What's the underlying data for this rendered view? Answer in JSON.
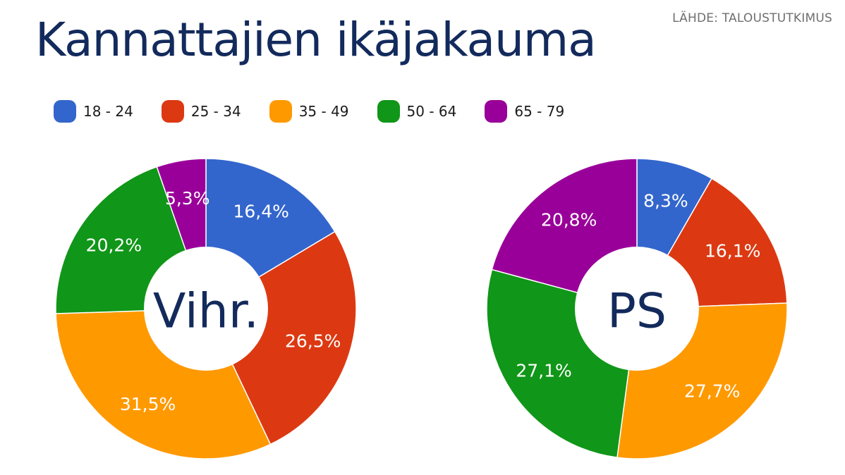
{
  "header": {
    "title": "Kannattajien ikäjakauma",
    "source": "LÄHDE: TALOUSTUTKIMUS"
  },
  "legend": [
    {
      "label": "18 - 24",
      "color": "#3366cc"
    },
    {
      "label": "25 - 34",
      "color": "#dc3912"
    },
    {
      "label": "35 - 49",
      "color": "#ff9900"
    },
    {
      "label": "50 - 64",
      "color": "#109618"
    },
    {
      "label": "65 - 79",
      "color": "#990099"
    }
  ],
  "chart_data": [
    {
      "type": "pie",
      "donut": true,
      "center_label": "Vihr.",
      "categories": [
        "18 - 24",
        "25 - 34",
        "35 - 49",
        "50 - 64",
        "65 - 79"
      ],
      "values": [
        16.4,
        26.5,
        31.5,
        20.2,
        5.3
      ],
      "labels": [
        "16,4%",
        "26,5%",
        "31,5%",
        "20,2%",
        "5,3%"
      ],
      "colors": [
        "#3366cc",
        "#dc3912",
        "#ff9900",
        "#109618",
        "#990099"
      ]
    },
    {
      "type": "pie",
      "donut": true,
      "center_label": "PS",
      "categories": [
        "18 - 24",
        "25 - 34",
        "35 - 49",
        "50 - 64",
        "65 - 79"
      ],
      "values": [
        8.3,
        16.1,
        27.7,
        27.1,
        20.8
      ],
      "labels": [
        "8,3%",
        "16,1%",
        "27,7%",
        "27,1%",
        "20,8%"
      ],
      "colors": [
        "#3366cc",
        "#dc3912",
        "#ff9900",
        "#109618",
        "#990099"
      ]
    }
  ]
}
